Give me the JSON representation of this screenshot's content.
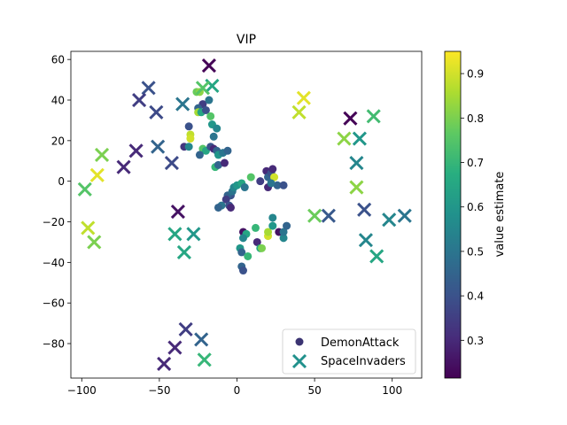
{
  "chart_data": {
    "type": "scatter",
    "title": "VIP",
    "xlabel": "",
    "ylabel": "",
    "xlim": [
      -107,
      119
    ],
    "ylim": [
      -97,
      64
    ],
    "xticks": [
      -100,
      -50,
      0,
      50,
      100
    ],
    "yticks": [
      60,
      40,
      20,
      0,
      -20,
      -40,
      -60,
      -80
    ],
    "grid": false,
    "legend": {
      "position": "lower right",
      "entries": [
        "DemonAttack",
        "SpaceInvaders"
      ]
    },
    "colorbar": {
      "label": "value estimate",
      "range": [
        0.215,
        0.95
      ],
      "ticks": [
        0.3,
        0.4,
        0.5,
        0.6,
        0.7,
        0.8,
        0.9
      ],
      "colormap": "viridis"
    },
    "series": [
      {
        "name": "DemonAttack",
        "marker": "circle",
        "points": [
          [
            -34,
            17,
            0.33
          ],
          [
            -31,
            17,
            0.55
          ],
          [
            -30,
            23,
            0.88
          ],
          [
            -30,
            21,
            0.9
          ],
          [
            -31,
            27,
            0.4
          ],
          [
            -26,
            44,
            0.78
          ],
          [
            -24,
            44,
            0.82
          ],
          [
            -22,
            38,
            0.35
          ],
          [
            -25,
            36,
            0.45
          ],
          [
            -25,
            34,
            0.85
          ],
          [
            -23,
            34,
            0.65
          ],
          [
            -20,
            35,
            0.4
          ],
          [
            -18,
            40,
            0.5
          ],
          [
            -17,
            32,
            0.75
          ],
          [
            -16,
            28,
            0.6
          ],
          [
            -15,
            22,
            0.5
          ],
          [
            -13,
            26,
            0.55
          ],
          [
            -22,
            16,
            0.75
          ],
          [
            -20,
            15,
            0.65
          ],
          [
            -17,
            17,
            0.4
          ],
          [
            -15,
            16,
            0.3
          ],
          [
            -13,
            15,
            0.45
          ],
          [
            -24,
            13,
            0.45
          ],
          [
            -14,
            7,
            0.7
          ],
          [
            -12,
            8,
            0.45
          ],
          [
            -12,
            13,
            0.6
          ],
          [
            -9,
            14,
            0.5
          ],
          [
            -6,
            15,
            0.45
          ],
          [
            -8,
            9,
            0.3
          ],
          [
            -4,
            -7,
            0.4
          ],
          [
            -6,
            -7,
            0.45
          ],
          [
            -7,
            -9,
            0.35
          ],
          [
            -3,
            -5,
            0.5
          ],
          [
            -2,
            -3,
            0.55
          ],
          [
            0,
            -2,
            0.6
          ],
          [
            3,
            -1,
            0.65
          ],
          [
            5,
            -3,
            0.5
          ],
          [
            9,
            2,
            0.75
          ],
          [
            -5,
            -12,
            0.4
          ],
          [
            -10,
            -12,
            0.5
          ],
          [
            -12,
            -13,
            0.45
          ],
          [
            -4,
            -13,
            0.3
          ],
          [
            4,
            -25,
            0.25
          ],
          [
            6,
            -26,
            0.65
          ],
          [
            4,
            -28,
            0.55
          ],
          [
            2,
            -33,
            0.6
          ],
          [
            3,
            -35,
            0.45
          ],
          [
            7,
            -37,
            0.7
          ],
          [
            3,
            -42,
            0.45
          ],
          [
            4,
            -44,
            0.4
          ],
          [
            13,
            -30,
            0.3
          ],
          [
            15,
            -33,
            0.65
          ],
          [
            16,
            -33,
            0.8
          ],
          [
            12,
            -23,
            0.7
          ],
          [
            20,
            -27,
            0.9
          ],
          [
            20,
            -25,
            0.85
          ],
          [
            23,
            -18,
            0.55
          ],
          [
            23,
            -22,
            0.6
          ],
          [
            27,
            -25,
            0.25
          ],
          [
            30,
            -28,
            0.55
          ],
          [
            30,
            -25,
            0.5
          ],
          [
            32,
            -22,
            0.45
          ],
          [
            19,
            5,
            0.3
          ],
          [
            20,
            2,
            0.45
          ],
          [
            22,
            4,
            0.4
          ],
          [
            23,
            6,
            0.3
          ],
          [
            24,
            2,
            0.9
          ],
          [
            26,
            -2,
            0.45
          ],
          [
            30,
            -2,
            0.4
          ],
          [
            20,
            -3,
            0.3
          ],
          [
            22,
            -1,
            0.5
          ],
          [
            15,
            0,
            0.35
          ]
        ]
      },
      {
        "name": "SpaceInvaders",
        "marker": "x",
        "points": [
          [
            -18,
            57,
            0.22
          ],
          [
            -16,
            47,
            0.65
          ],
          [
            -22,
            46,
            0.75
          ],
          [
            -57,
            46,
            0.4
          ],
          [
            -63,
            40,
            0.35
          ],
          [
            -52,
            34,
            0.38
          ],
          [
            -35,
            38,
            0.5
          ],
          [
            -65,
            15,
            0.3
          ],
          [
            -51,
            17,
            0.45
          ],
          [
            -42,
            9,
            0.38
          ],
          [
            -73,
            7,
            0.3
          ],
          [
            -87,
            13,
            0.8
          ],
          [
            -90,
            3,
            0.92
          ],
          [
            -98,
            -4,
            0.75
          ],
          [
            -96,
            -23,
            0.88
          ],
          [
            -92,
            -30,
            0.8
          ],
          [
            -38,
            -15,
            0.25
          ],
          [
            -40,
            -26,
            0.65
          ],
          [
            -28,
            -26,
            0.6
          ],
          [
            -34,
            -35,
            0.65
          ],
          [
            -33,
            -73,
            0.35
          ],
          [
            -40,
            -82,
            0.3
          ],
          [
            -47,
            -90,
            0.3
          ],
          [
            -23,
            -78,
            0.45
          ],
          [
            -21,
            -88,
            0.7
          ],
          [
            43,
            41,
            0.92
          ],
          [
            40,
            34,
            0.88
          ],
          [
            73,
            31,
            0.22
          ],
          [
            88,
            32,
            0.72
          ],
          [
            69,
            21,
            0.82
          ],
          [
            79,
            21,
            0.6
          ],
          [
            77,
            9,
            0.55
          ],
          [
            77,
            -3,
            0.82
          ],
          [
            82,
            -14,
            0.4
          ],
          [
            50,
            -17,
            0.78
          ],
          [
            59,
            -17,
            0.42
          ],
          [
            98,
            -19,
            0.55
          ],
          [
            108,
            -17,
            0.5
          ],
          [
            83,
            -29,
            0.55
          ],
          [
            90,
            -37,
            0.65
          ]
        ]
      }
    ]
  }
}
